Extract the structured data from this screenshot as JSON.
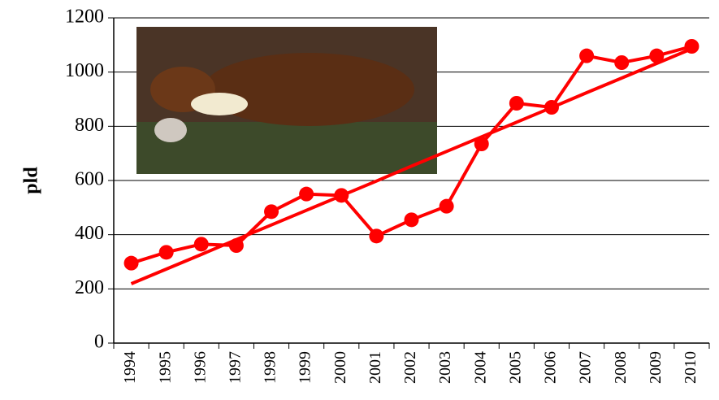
{
  "chart_data": {
    "type": "line",
    "y_label": "pld",
    "categories": [
      "1994",
      "1995",
      "1996",
      "1997",
      "1998",
      "1999",
      "2000",
      "2001",
      "2002",
      "2003",
      "2004",
      "2005",
      "2006",
      "2007",
      "2008",
      "2009",
      "2010"
    ],
    "series": [
      {
        "color": "#ff0000",
        "markers": true,
        "values": [
          295,
          335,
          365,
          360,
          485,
          550,
          545,
          395,
          455,
          505,
          735,
          885,
          870,
          1060,
          1035,
          1060,
          1095
        ]
      },
      {
        "color": "#ff0000",
        "markers": false,
        "values": [
          219,
          273,
          327,
          382,
          436,
          490,
          544,
          598,
          653,
          707,
          761,
          815,
          869,
          924,
          978,
          1032,
          1086
        ]
      }
    ],
    "ylim": [
      0,
      1200
    ],
    "yticks": [
      0,
      200,
      400,
      600,
      800,
      1000,
      1200
    ],
    "grid": true
  }
}
